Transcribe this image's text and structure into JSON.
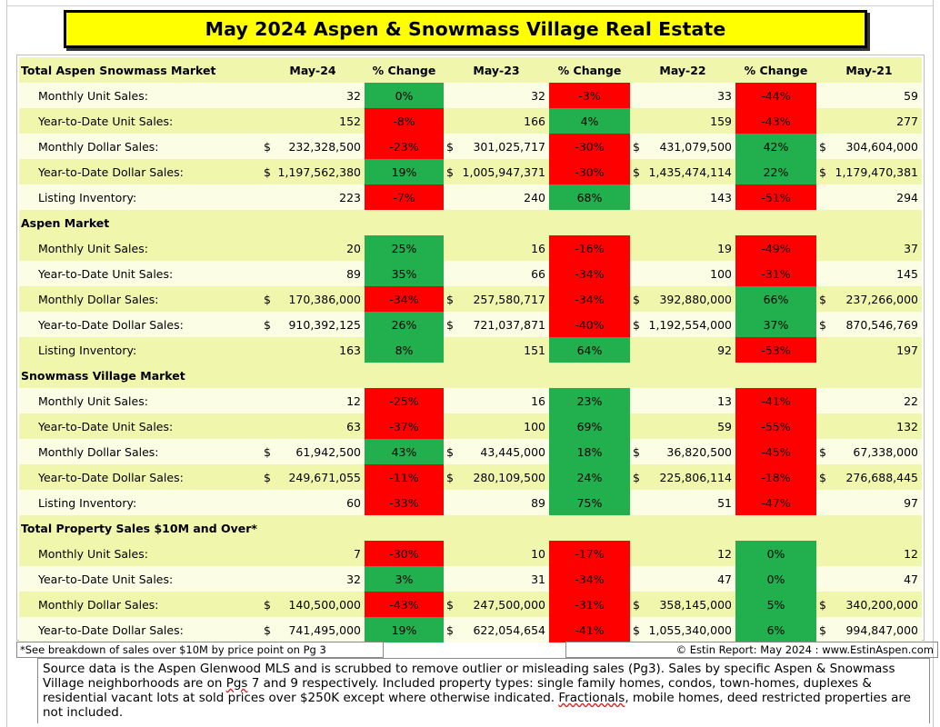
{
  "title": "May 2024 Aspen & Snowmass Village Real Estate",
  "colors": {
    "title_fill": "#ffff00",
    "header_fill": "#f1f6ad",
    "row_light": "#fbfde5",
    "positive": "#22b04e",
    "negative": "#ff0000"
  },
  "header": {
    "label": "Total Aspen Snowmass Market",
    "columns": [
      "May-24",
      "% Change",
      "May-23",
      "% Change",
      "May-22",
      "% Change",
      "May-21"
    ]
  },
  "sections": [
    {
      "title": "",
      "rows": [
        {
          "label": "Monthly Unit Sales:",
          "cells": [
            {
              "cur": "",
              "val": "32"
            },
            {
              "pct": "0%",
              "dir": "pos"
            },
            {
              "cur": "",
              "val": "32"
            },
            {
              "pct": "-3%",
              "dir": "neg"
            },
            {
              "cur": "",
              "val": "33"
            },
            {
              "pct": "-44%",
              "dir": "neg"
            },
            {
              "cur": "",
              "val": "59"
            }
          ]
        },
        {
          "label": "Year-to-Date Unit Sales:",
          "cells": [
            {
              "cur": "",
              "val": "152"
            },
            {
              "pct": "-8%",
              "dir": "neg"
            },
            {
              "cur": "",
              "val": "166"
            },
            {
              "pct": "4%",
              "dir": "pos"
            },
            {
              "cur": "",
              "val": "159"
            },
            {
              "pct": "-43%",
              "dir": "neg"
            },
            {
              "cur": "",
              "val": "277"
            }
          ]
        },
        {
          "label": "Monthly Dollar Sales:",
          "cells": [
            {
              "cur": "$",
              "val": "232,328,500"
            },
            {
              "pct": "-23%",
              "dir": "neg"
            },
            {
              "cur": "$",
              "val": "301,025,717"
            },
            {
              "pct": "-30%",
              "dir": "neg"
            },
            {
              "cur": "$",
              "val": "431,079,500"
            },
            {
              "pct": "42%",
              "dir": "pos"
            },
            {
              "cur": "$",
              "val": "304,604,000"
            }
          ]
        },
        {
          "label": "Year-to-Date Dollar Sales:",
          "cells": [
            {
              "cur": "$",
              "val": "1,197,562,380"
            },
            {
              "pct": "19%",
              "dir": "pos"
            },
            {
              "cur": "$",
              "val": "1,005,947,371"
            },
            {
              "pct": "-30%",
              "dir": "neg"
            },
            {
              "cur": "$",
              "val": "1,435,474,114"
            },
            {
              "pct": "22%",
              "dir": "pos"
            },
            {
              "cur": "$",
              "val": "1,179,470,381"
            }
          ]
        },
        {
          "label": "Listing Inventory:",
          "cells": [
            {
              "cur": "",
              "val": "223"
            },
            {
              "pct": "-7%",
              "dir": "neg"
            },
            {
              "cur": "",
              "val": "240"
            },
            {
              "pct": "68%",
              "dir": "pos"
            },
            {
              "cur": "",
              "val": "143"
            },
            {
              "pct": "-51%",
              "dir": "neg"
            },
            {
              "cur": "",
              "val": "294"
            }
          ]
        }
      ]
    },
    {
      "title": "Aspen Market",
      "rows": [
        {
          "label": "Monthly Unit Sales:",
          "cells": [
            {
              "cur": "",
              "val": "20"
            },
            {
              "pct": "25%",
              "dir": "pos"
            },
            {
              "cur": "",
              "val": "16"
            },
            {
              "pct": "-16%",
              "dir": "neg"
            },
            {
              "cur": "",
              "val": "19"
            },
            {
              "pct": "-49%",
              "dir": "neg"
            },
            {
              "cur": "",
              "val": "37"
            }
          ]
        },
        {
          "label": "Year-to-Date Unit Sales:",
          "cells": [
            {
              "cur": "",
              "val": "89"
            },
            {
              "pct": "35%",
              "dir": "pos"
            },
            {
              "cur": "",
              "val": "66"
            },
            {
              "pct": "-34%",
              "dir": "neg"
            },
            {
              "cur": "",
              "val": "100"
            },
            {
              "pct": "-31%",
              "dir": "neg"
            },
            {
              "cur": "",
              "val": "145"
            }
          ]
        },
        {
          "label": "Monthly Dollar Sales:",
          "cells": [
            {
              "cur": "$",
              "val": "170,386,000"
            },
            {
              "pct": "-34%",
              "dir": "neg"
            },
            {
              "cur": "$",
              "val": "257,580,717"
            },
            {
              "pct": "-34%",
              "dir": "neg"
            },
            {
              "cur": "$",
              "val": "392,880,000"
            },
            {
              "pct": "66%",
              "dir": "pos"
            },
            {
              "cur": "$",
              "val": "237,266,000"
            }
          ]
        },
        {
          "label": "Year-to-Date Dollar Sales:",
          "cells": [
            {
              "cur": "$",
              "val": "910,392,125"
            },
            {
              "pct": "26%",
              "dir": "pos"
            },
            {
              "cur": "$",
              "val": "721,037,871"
            },
            {
              "pct": "-40%",
              "dir": "neg"
            },
            {
              "cur": "$",
              "val": "1,192,554,000"
            },
            {
              "pct": "37%",
              "dir": "pos"
            },
            {
              "cur": "$",
              "val": "870,546,769"
            }
          ]
        },
        {
          "label": "Listing Inventory:",
          "cells": [
            {
              "cur": "",
              "val": "163"
            },
            {
              "pct": "8%",
              "dir": "pos"
            },
            {
              "cur": "",
              "val": "151"
            },
            {
              "pct": "64%",
              "dir": "pos"
            },
            {
              "cur": "",
              "val": "92"
            },
            {
              "pct": "-53%",
              "dir": "neg"
            },
            {
              "cur": "",
              "val": "197"
            }
          ]
        }
      ]
    },
    {
      "title": "Snowmass Village Market",
      "rows": [
        {
          "label": "Monthly Unit Sales:",
          "cells": [
            {
              "cur": "",
              "val": "12"
            },
            {
              "pct": "-25%",
              "dir": "neg"
            },
            {
              "cur": "",
              "val": "16"
            },
            {
              "pct": "23%",
              "dir": "pos"
            },
            {
              "cur": "",
              "val": "13"
            },
            {
              "pct": "-41%",
              "dir": "neg"
            },
            {
              "cur": "",
              "val": "22"
            }
          ]
        },
        {
          "label": "Year-to-Date Unit Sales:",
          "cells": [
            {
              "cur": "",
              "val": "63"
            },
            {
              "pct": "-37%",
              "dir": "neg"
            },
            {
              "cur": "",
              "val": "100"
            },
            {
              "pct": "69%",
              "dir": "pos"
            },
            {
              "cur": "",
              "val": "59"
            },
            {
              "pct": "-55%",
              "dir": "neg"
            },
            {
              "cur": "",
              "val": "132"
            }
          ]
        },
        {
          "label": "Monthly Dollar Sales:",
          "cells": [
            {
              "cur": "$",
              "val": "61,942,500"
            },
            {
              "pct": "43%",
              "dir": "pos"
            },
            {
              "cur": "$",
              "val": "43,445,000"
            },
            {
              "pct": "18%",
              "dir": "pos"
            },
            {
              "cur": "$",
              "val": "36,820,500"
            },
            {
              "pct": "-45%",
              "dir": "neg"
            },
            {
              "cur": "$",
              "val": "67,338,000"
            }
          ]
        },
        {
          "label": "Year-to-Date Dollar Sales:",
          "cells": [
            {
              "cur": "$",
              "val": "249,671,055"
            },
            {
              "pct": "-11%",
              "dir": "neg"
            },
            {
              "cur": "$",
              "val": "280,109,500"
            },
            {
              "pct": "24%",
              "dir": "pos"
            },
            {
              "cur": "$",
              "val": "225,806,114"
            },
            {
              "pct": "-18%",
              "dir": "neg"
            },
            {
              "cur": "$",
              "val": "276,688,445"
            }
          ]
        },
        {
          "label": "Listing Inventory:",
          "cells": [
            {
              "cur": "",
              "val": "60"
            },
            {
              "pct": "-33%",
              "dir": "neg"
            },
            {
              "cur": "",
              "val": "89"
            },
            {
              "pct": "75%",
              "dir": "pos"
            },
            {
              "cur": "",
              "val": "51"
            },
            {
              "pct": "-47%",
              "dir": "neg"
            },
            {
              "cur": "",
              "val": "97"
            }
          ]
        }
      ]
    },
    {
      "title": "Total Property Sales $10M and Over*",
      "rows": [
        {
          "label": "Monthly Unit Sales:",
          "cells": [
            {
              "cur": "",
              "val": "7"
            },
            {
              "pct": "-30%",
              "dir": "neg"
            },
            {
              "cur": "",
              "val": "10"
            },
            {
              "pct": "-17%",
              "dir": "neg"
            },
            {
              "cur": "",
              "val": "12"
            },
            {
              "pct": "0%",
              "dir": "pos"
            },
            {
              "cur": "",
              "val": "12"
            }
          ]
        },
        {
          "label": "Year-to-Date Unit Sales:",
          "cells": [
            {
              "cur": "",
              "val": "32"
            },
            {
              "pct": "3%",
              "dir": "pos"
            },
            {
              "cur": "",
              "val": "31"
            },
            {
              "pct": "-34%",
              "dir": "neg"
            },
            {
              "cur": "",
              "val": "47"
            },
            {
              "pct": "0%",
              "dir": "pos"
            },
            {
              "cur": "",
              "val": "47"
            }
          ]
        },
        {
          "label": "Monthly Dollar Sales:",
          "cells": [
            {
              "cur": "$",
              "val": "140,500,000"
            },
            {
              "pct": "-43%",
              "dir": "neg"
            },
            {
              "cur": "$",
              "val": "247,500,000"
            },
            {
              "pct": "-31%",
              "dir": "neg"
            },
            {
              "cur": "$",
              "val": "358,145,000"
            },
            {
              "pct": "5%",
              "dir": "pos"
            },
            {
              "cur": "$",
              "val": "340,200,000"
            }
          ]
        },
        {
          "label": "Year-to-Date Dollar Sales:",
          "cells": [
            {
              "cur": "$",
              "val": "741,495,000"
            },
            {
              "pct": "19%",
              "dir": "pos"
            },
            {
              "cur": "$",
              "val": "622,054,654"
            },
            {
              "pct": "-41%",
              "dir": "neg"
            },
            {
              "cur": "$",
              "val": "1,055,340,000"
            },
            {
              "pct": "6%",
              "dir": "pos"
            },
            {
              "cur": "$",
              "val": "994,847,000"
            }
          ]
        }
      ]
    }
  ],
  "footnote": "*See breakdown of sales over $10M by price point on Pg 3",
  "copyright": "© Estin Report: May 2024 : www.EstinAspen.com",
  "source_note": {
    "p1": "Source data is the Aspen Glenwood MLS and is scrubbed to remove outlier or misleading sales (Pg3). Sales by specific Aspen & Snowmass Village neighborhoods are on ",
    "pgs": "Pgs",
    "p2": " 7 and 9 respectively. Included property types: single family homes, condos, town-homes, duplexes & residential vacant lots at sold prices over $250K except where otherwise indicated. ",
    "fractionals": "Fractionals",
    "p3": ", mobile homes, deed restricted properties are not included."
  }
}
